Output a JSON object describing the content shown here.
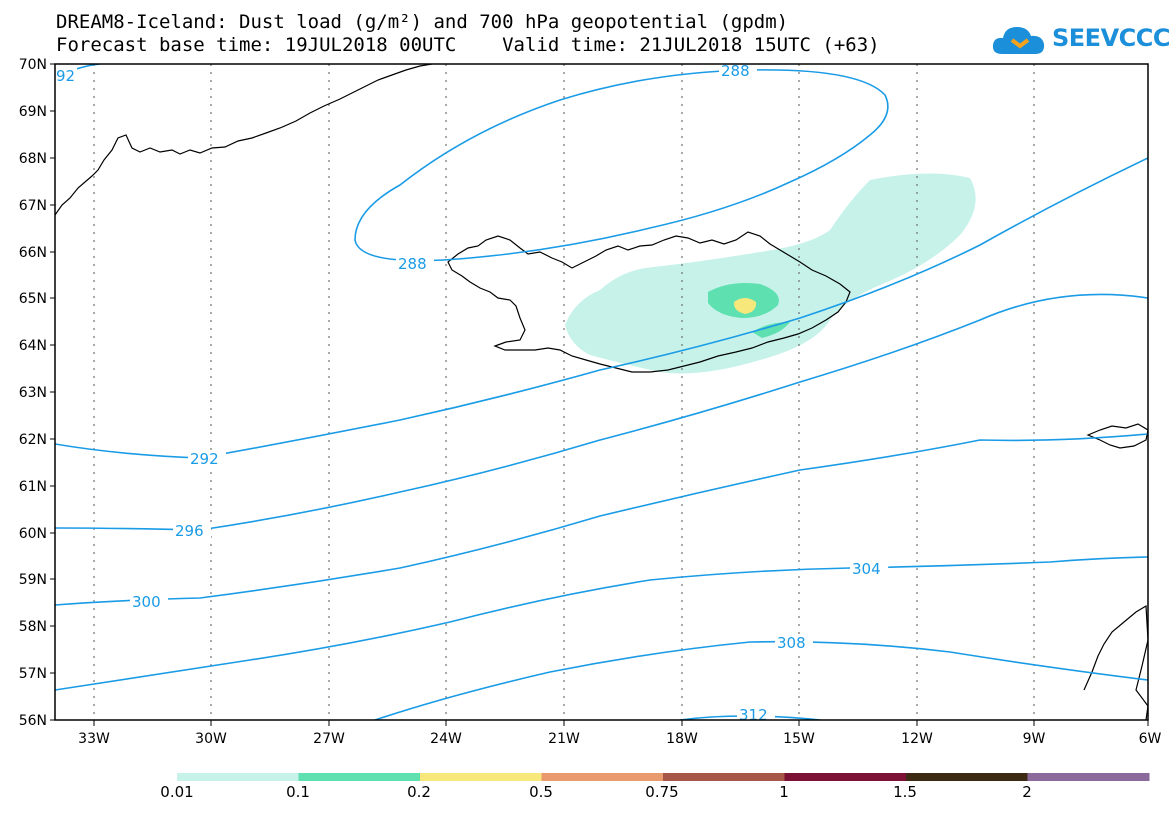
{
  "header": {
    "title_line1": "DREAM8-Iceland: Dust load (g/m²) and 700 hPa geopotential (gpdm)",
    "title_line2": "Forecast base time: 19JUL2018 00UTC    Valid time: 21JUL2018 15UTC (+63)"
  },
  "logo": {
    "text": "SEEVCCC",
    "brand_color": "#1b8fd9"
  },
  "map": {
    "lat_labels": [
      "70N",
      "69N",
      "68N",
      "67N",
      "66N",
      "65N",
      "64N",
      "63N",
      "62N",
      "61N",
      "60N",
      "59N",
      "58N",
      "57N",
      "56N"
    ],
    "lon_labels": [
      "33W",
      "30W",
      "27W",
      "24W",
      "21W",
      "18W",
      "15W",
      "12W",
      "9W",
      "6W"
    ],
    "contour_color": "#1a9be6",
    "contour_labels": {
      "c292a": "92",
      "c288top": "288",
      "c288left": "288",
      "c292": "292",
      "c296": "296",
      "c300": "300",
      "c304": "304",
      "c308": "308",
      "c312": "312"
    }
  },
  "legend": {
    "colors": [
      "#c6f2ea",
      "#5fe0b1",
      "#f8e77a",
      "#e99a6f",
      "#a6574a",
      "#7d1035",
      "#3c2a14",
      "#8b6a9b"
    ],
    "labels": [
      "0.01",
      "0.1",
      "0.2",
      "0.5",
      "0.75",
      "1",
      "1.5",
      "2"
    ]
  }
}
